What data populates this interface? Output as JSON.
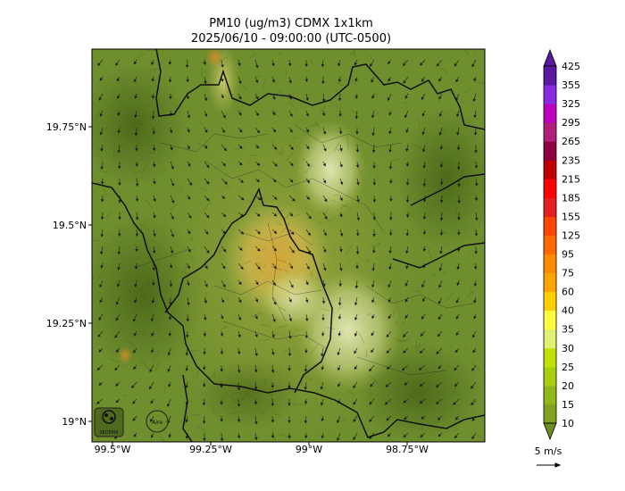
{
  "title": {
    "line1": "PM10 (ug/m3) CDMX 1x1km",
    "line2": "2025/06/10 - 09:00:00 (UTC-0500)"
  },
  "axes": {
    "x_ticks": [
      "99.5°W",
      "99.25°W",
      "99°W",
      "98.75°W"
    ],
    "y_ticks": [
      "19.75°N",
      "19.5°N",
      "19.25°N",
      "19°N"
    ]
  },
  "colorbar": {
    "levels": [
      "10",
      "15",
      "20",
      "25",
      "30",
      "35",
      "40",
      "60",
      "75",
      "95",
      "125",
      "155",
      "185",
      "215",
      "235",
      "265",
      "295",
      "325",
      "355",
      "425"
    ],
    "colors": [
      "#6b8e23",
      "#80a020",
      "#90b818",
      "#a8d00c",
      "#c0e000",
      "#e0f070",
      "#ffff40",
      "#ffd000",
      "#ffa500",
      "#ff8c00",
      "#ff6a00",
      "#ff4500",
      "#e62020",
      "#ff0000",
      "#c00000",
      "#8b0040",
      "#b0207a",
      "#c000c0",
      "#8a2be2",
      "#5a1aa0"
    ]
  },
  "wind": {
    "scale_label": "5 m/s"
  },
  "logos": {
    "left": "SEDEMA",
    "right": "Aire"
  }
}
